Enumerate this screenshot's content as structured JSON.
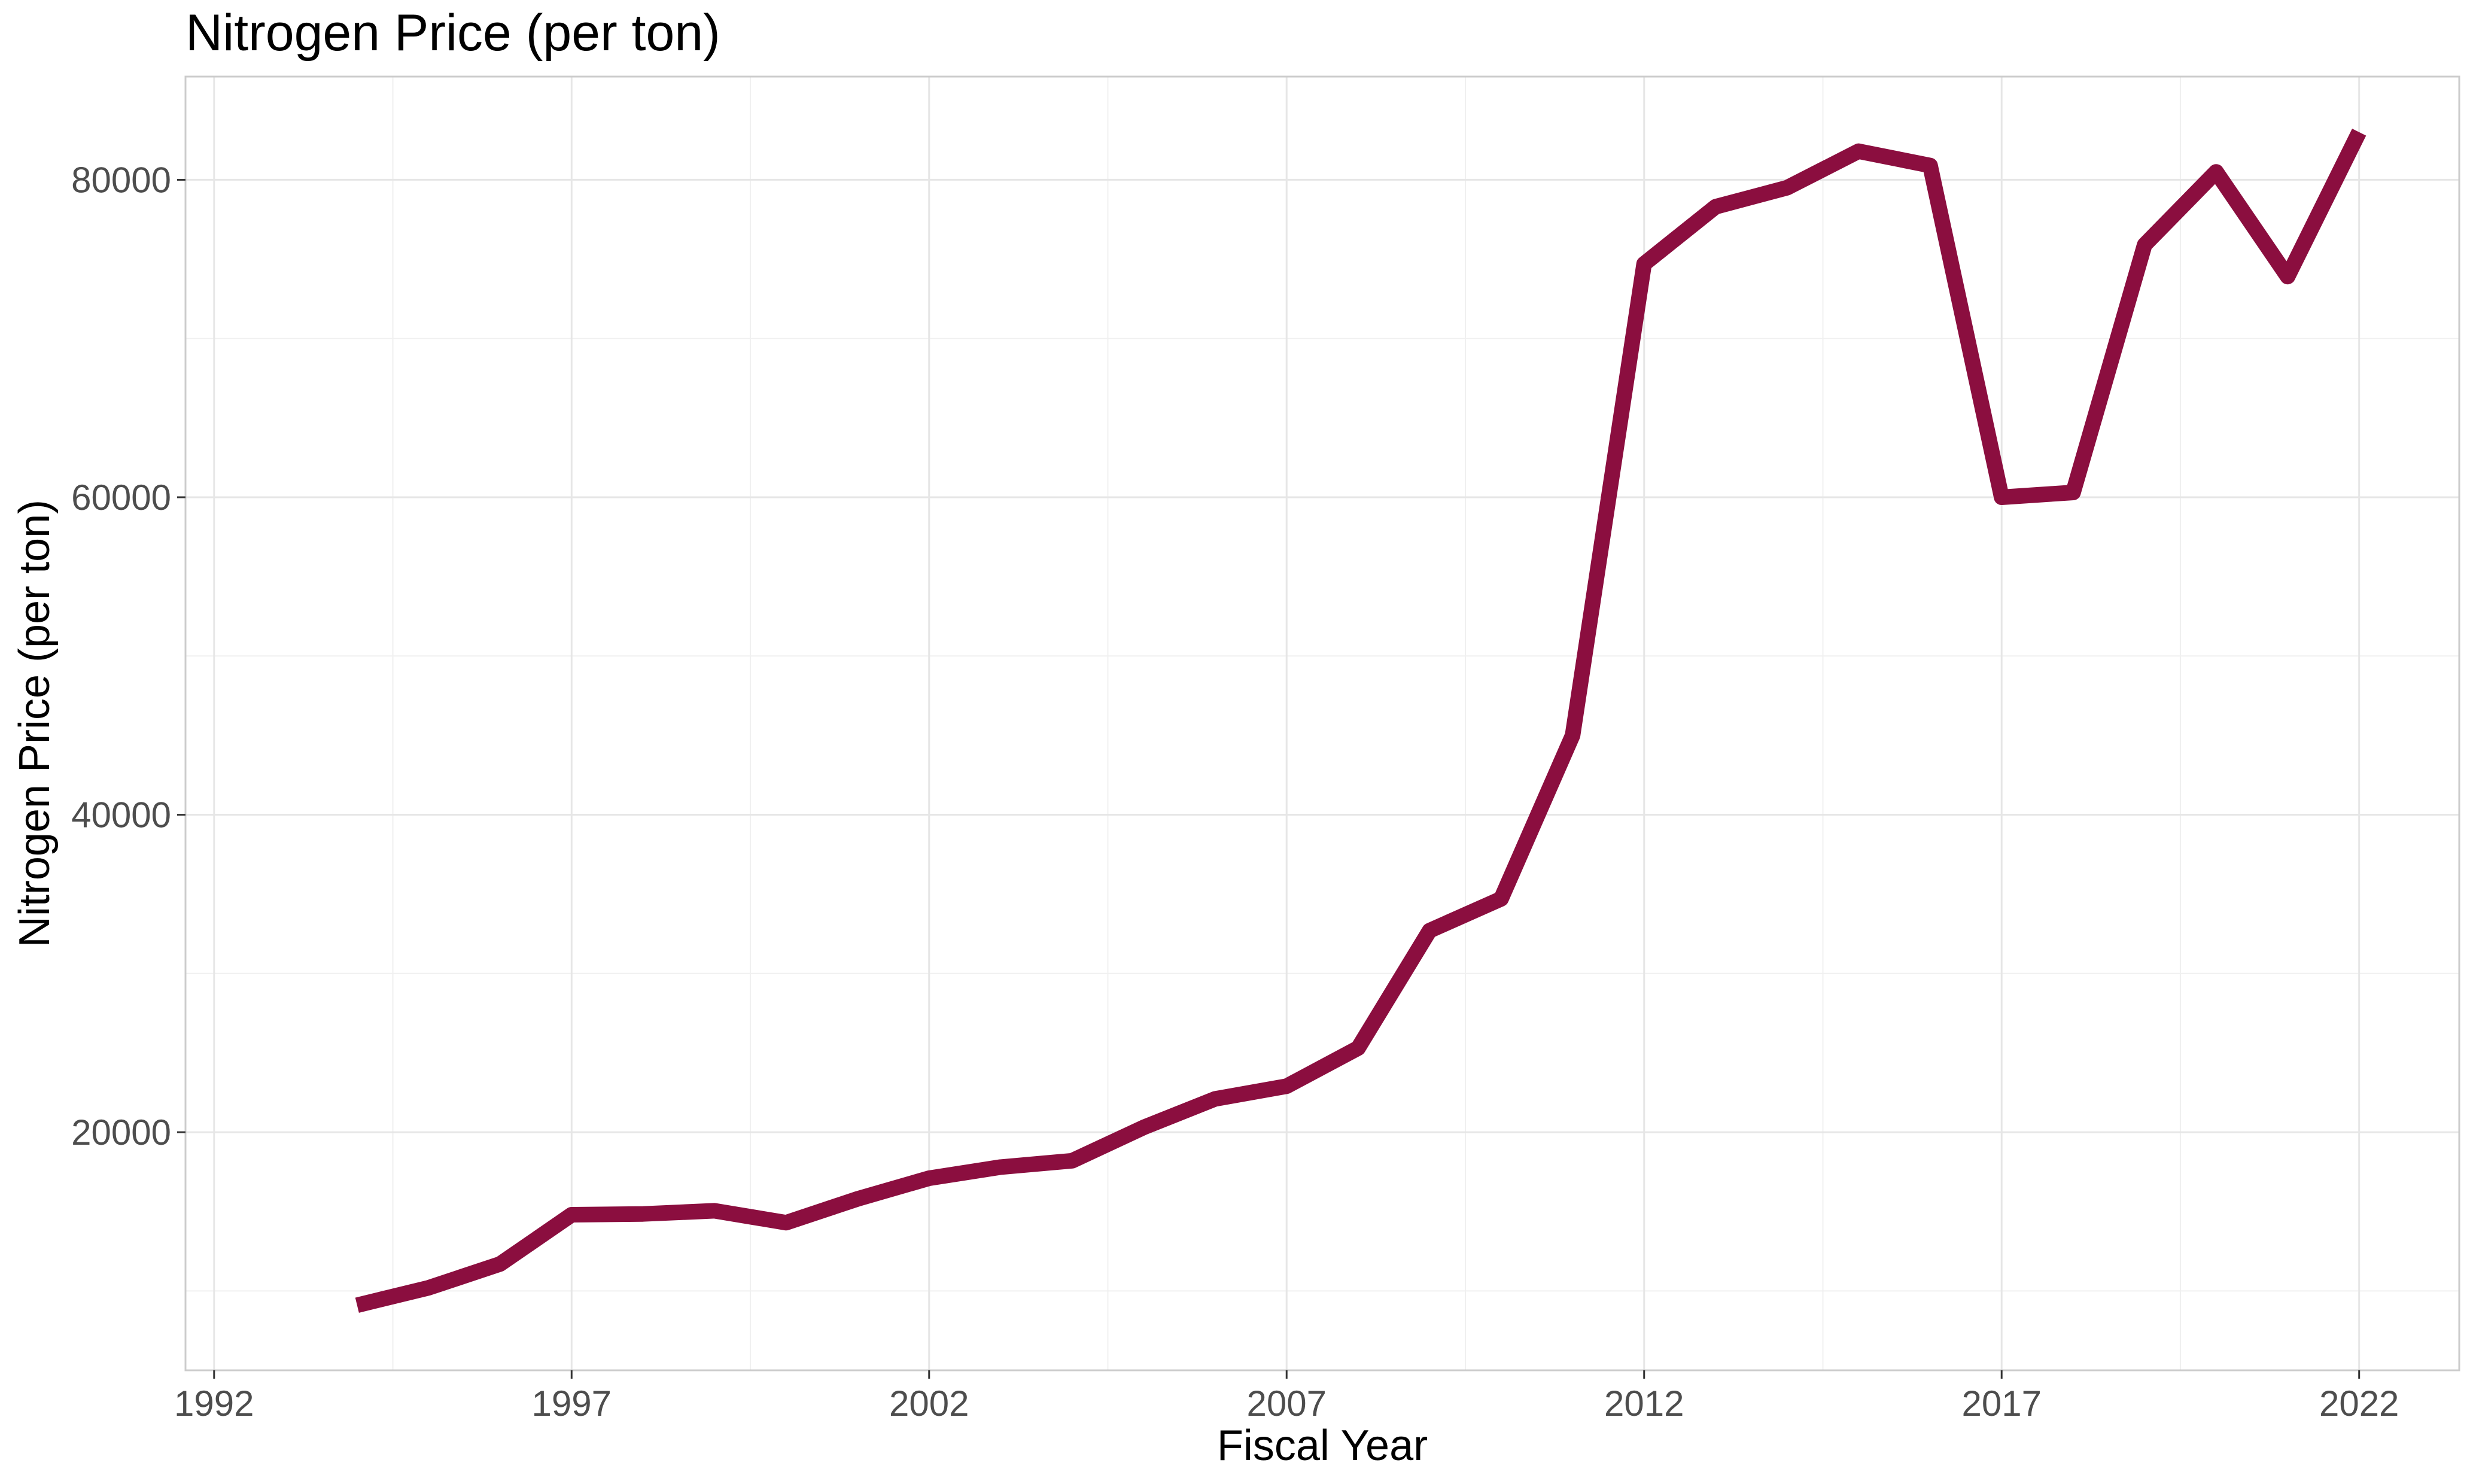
{
  "chart_data": {
    "type": "line",
    "title": "Nitrogen Price (per ton)",
    "xlabel": "Fiscal Year",
    "ylabel": "Nitrogen Price (per ton)",
    "xlim": [
      1991.6,
      2023.4
    ],
    "ylim": [
      5000,
      86500
    ],
    "x_ticks": [
      1992,
      1997,
      2002,
      2007,
      2012,
      2017,
      2022
    ],
    "y_ticks": [
      20000,
      40000,
      60000,
      80000
    ],
    "grid": true,
    "legend": "none",
    "line_color": "#8b0e3f",
    "series": [
      {
        "x": [
          1994,
          1995,
          1996,
          1997,
          1998,
          1999,
          2000,
          2001,
          2002,
          2003,
          2004,
          2005,
          2006,
          2007,
          2008,
          2009,
          2010,
          2011,
          2012,
          2013,
          2014,
          2015,
          2016,
          2017,
          2018,
          2019,
          2020,
          2021,
          2022
        ],
        "values": [
          9100,
          10200,
          11700,
          14800,
          14850,
          15050,
          14300,
          15800,
          17100,
          17800,
          18200,
          20300,
          22100,
          22900,
          25300,
          32700,
          34700,
          45000,
          74700,
          78300,
          79500,
          81800,
          80900,
          60000,
          60300,
          75900,
          80500,
          73900,
          83000
        ]
      }
    ]
  }
}
